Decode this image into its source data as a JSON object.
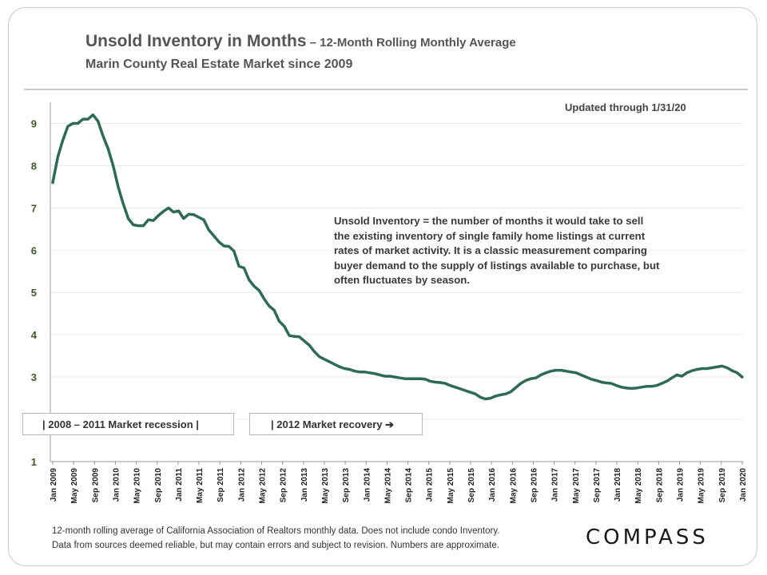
{
  "header": {
    "title_main": "Unsold Inventory in Months",
    "title_suffix": " – 12-Month Rolling Monthly Average",
    "subtitle": "Marin County Real Estate Market since 2009"
  },
  "annotations": {
    "updated": "Updated through 1/31/20",
    "note": "Unsold Inventory = the number of months it would take to sell the existing inventory of single family home listings at current rates of market activity.  It is a classic measurement comparing buyer demand to the supply of listings available to purchase, but often fluctuates by season.",
    "recession": "|   2008 – 2011 Market recession   |",
    "recovery": "| 2012  Market recovery ➔"
  },
  "footer": {
    "line1": "12-month rolling average of California Association of Realtors monthly data. Does not include condo Inventory.",
    "line2": "Data from sources deemed reliable, but may contain errors and subject to revision. Numbers are approximate.",
    "logo": "COMPASS"
  },
  "colors": {
    "line": "#2e6b52",
    "grid": "#eaeaea",
    "tick_label": "#3f5a2a"
  },
  "chart_data": {
    "type": "line",
    "ylim": [
      1,
      9.5
    ],
    "yticks": [
      1,
      3,
      4,
      5,
      6,
      7,
      8,
      9
    ],
    "grid": true,
    "x_tick_labels": [
      "Jan 2009",
      "May 2009",
      "Sep 2009",
      "Jan 2010",
      "May 2010",
      "Sep 2010",
      "Jan 2011",
      "May 2011",
      "Sep 2011",
      "Jan 2012",
      "May 2012",
      "Sep 2012",
      "Jan 2013",
      "May 2013",
      "Sep 2013",
      "Jan 2014",
      "May 2014",
      "Sep 2014",
      "Jan 2015",
      "May 2015",
      "Sep 2015",
      "Jan 2016",
      "May 2016",
      "Sep 2016",
      "Jan 2017",
      "May 2017",
      "Sep 2017",
      "Jan 2018",
      "May 2018",
      "Sep 2018",
      "Jan 2019",
      "May 2019",
      "Sep 2019",
      "Jan 2020"
    ],
    "series": [
      {
        "values": [
          7.6,
          8.2,
          8.6,
          8.93,
          9.0,
          9.0,
          9.1,
          9.1,
          9.2,
          9.05,
          8.7,
          8.4,
          8.0,
          7.5,
          7.1,
          6.75,
          6.6,
          6.58,
          6.58,
          6.72,
          6.7,
          6.82,
          6.92,
          7.0,
          6.9,
          6.93,
          6.75,
          6.85,
          6.84,
          6.78,
          6.72,
          6.48,
          6.34,
          6.2,
          6.1,
          6.09,
          5.98,
          5.62,
          5.58,
          5.3,
          5.15,
          5.05,
          4.85,
          4.68,
          4.58,
          4.32,
          4.2,
          3.98,
          3.96,
          3.95,
          3.85,
          3.75,
          3.6,
          3.48,
          3.42,
          3.36,
          3.3,
          3.24,
          3.2,
          3.18,
          3.14,
          3.12,
          3.12,
          3.1,
          3.08,
          3.05,
          3.02,
          3.02,
          3.0,
          2.98,
          2.96,
          2.96,
          2.96,
          2.96,
          2.95,
          2.9,
          2.88,
          2.87,
          2.85,
          2.8,
          2.76,
          2.72,
          2.68,
          2.64,
          2.6,
          2.52,
          2.48,
          2.5,
          2.55,
          2.58,
          2.6,
          2.65,
          2.75,
          2.85,
          2.92,
          2.96,
          2.98,
          3.05,
          3.1,
          3.14,
          3.16,
          3.16,
          3.14,
          3.12,
          3.1,
          3.05,
          3.0,
          2.95,
          2.92,
          2.88,
          2.86,
          2.85,
          2.8,
          2.76,
          2.74,
          2.73,
          2.74,
          2.76,
          2.78,
          2.78,
          2.8,
          2.85,
          2.9,
          2.98,
          3.05,
          3.02,
          3.1,
          3.15,
          3.18,
          3.2,
          3.2,
          3.22,
          3.24,
          3.26,
          3.22,
          3.15,
          3.1,
          3.0
        ]
      }
    ]
  }
}
